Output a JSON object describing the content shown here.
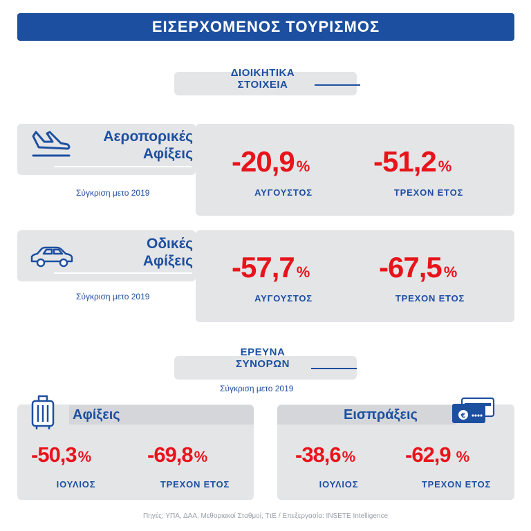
{
  "header": {
    "title": "ΕΙΣΕΡΧΟΜΕΝΟΣ ΤΟΥΡΙΣΜΟΣ"
  },
  "admin_section": {
    "line1": "ΔΙΟΙΚΗΤΙΚΑ",
    "line2": "ΣΤΟΙΧΕΙΑ"
  },
  "air": {
    "title_line1": "Αεροπορικές",
    "title_line2": "Αφίξεις",
    "icon": "airplane-landing-icon",
    "note": "Σύγκριση μετο 2019",
    "stats": [
      {
        "value": "-20,9",
        "unit": "%",
        "label": "ΑΥΓΟΥΣΤΟΣ"
      },
      {
        "value": "-51,2",
        "unit": "%",
        "label": "ΤΡΕΧΟΝ ΕΤΟΣ"
      }
    ]
  },
  "road": {
    "title_line1": "Οδικές",
    "title_line2": "Αφίξεις",
    "icon": "car-icon",
    "note": "Σύγκριση μετο 2019",
    "stats": [
      {
        "value": "-57,7",
        "unit": "%",
        "label": "ΑΥΓΟΥΣΤΟΣ"
      },
      {
        "value": "-67,5",
        "unit": "%",
        "label": "ΤΡΕΧΟΝ ΕΤΟΣ"
      }
    ]
  },
  "survey_section": {
    "line1": "ΕΡΕΥΝΑ",
    "line2": "ΣΥΝΟΡΩΝ",
    "note": "Σύγκριση μετο 2019"
  },
  "arrivals": {
    "title": "Αφίξεις",
    "icon": "suitcase-icon",
    "stats": [
      {
        "value": "-50,3",
        "unit": "%",
        "label": "ΙΟΥΛΙΟΣ"
      },
      {
        "value": "-69,8",
        "unit": "%",
        "label": "ΤΡΕΧΟΝ ΕΤΟΣ"
      }
    ]
  },
  "receipts": {
    "title": "Εισπράξεις",
    "icon": "credit-card-icon",
    "stats": [
      {
        "value": "-38,6",
        "unit": "%",
        "label": "ΙΟΥΛΙΟΣ"
      },
      {
        "value": "-62,9",
        "unit": "%",
        "label": "ΤΡΕΧΟΝ ΕΤΟΣ"
      }
    ]
  },
  "footer": {
    "text": "Πηγές: ΥΠΑ, ΔΑΑ, Μεθοριακοί Σταθμοί, ΤτΕ / Επεξεργασία: INSETE Intelligence"
  },
  "colors": {
    "brand_blue": "#1d4fa0",
    "accent_red": "#e8141b",
    "panel_grey": "#e4e5e7"
  }
}
